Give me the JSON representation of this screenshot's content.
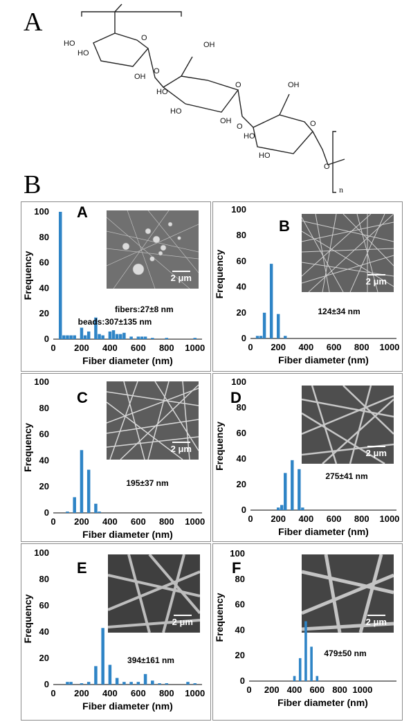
{
  "figure": {
    "label_a": "A",
    "label_b": "B"
  },
  "structure": {
    "labels": [
      "HO",
      "HO",
      "OH",
      "O",
      "O",
      "OH",
      "HO",
      "HO",
      "OH",
      "O",
      "O",
      "OH",
      "HO",
      "HO",
      "O",
      "O"
    ],
    "subscript": "n"
  },
  "colors": {
    "bar": "#2e84c6",
    "axis": "#000000",
    "sem_bg": "#6a6a6a",
    "sem_fiber": "#d6d6d6"
  },
  "chart_data": [
    {
      "type": "bar",
      "panel_label": "A",
      "xlabel": "Fiber diameter (nm)",
      "ylabel": "Frequency",
      "xlim": [
        0,
        1050
      ],
      "ylim": [
        0,
        100
      ],
      "xticks": [
        0,
        200,
        400,
        600,
        800,
        1000
      ],
      "yticks": [
        0,
        20,
        40,
        60,
        80,
        100
      ],
      "x": [
        50,
        75,
        100,
        125,
        150,
        200,
        225,
        250,
        300,
        325,
        350,
        400,
        425,
        450,
        475,
        500,
        550,
        600,
        625,
        650,
        700,
        800,
        1000
      ],
      "values": [
        100,
        3,
        3,
        3,
        3,
        9,
        3,
        6,
        17,
        4,
        3,
        6,
        7,
        4,
        4,
        5,
        2,
        2,
        2,
        2,
        1,
        1,
        1
      ],
      "annotations": [
        "fibers:27±8 nm",
        "beads:307±135 nm"
      ],
      "scale_bar": "2 μm"
    },
    {
      "type": "bar",
      "panel_label": "B",
      "xlabel": "Fiber diameter (nm)",
      "ylabel": "Frequency",
      "xlim": [
        0,
        1050
      ],
      "ylim": [
        0,
        100
      ],
      "xticks": [
        0,
        200,
        400,
        600,
        800,
        1000
      ],
      "yticks": [
        0,
        20,
        40,
        60,
        80,
        100
      ],
      "x": [
        50,
        75,
        100,
        150,
        200,
        250
      ],
      "values": [
        2,
        2,
        20,
        58,
        19,
        2
      ],
      "annotations": [
        "124±34 nm"
      ],
      "scale_bar": "2 μm"
    },
    {
      "type": "bar",
      "panel_label": "C",
      "xlabel": "Fiber diameter (nm)",
      "ylabel": "Frequency",
      "xlim": [
        0,
        1050
      ],
      "ylim": [
        0,
        100
      ],
      "xticks": [
        0,
        200,
        400,
        600,
        800,
        1000
      ],
      "yticks": [
        0,
        20,
        40,
        60,
        80,
        100
      ],
      "x": [
        100,
        150,
        200,
        250,
        300,
        325
      ],
      "values": [
        1,
        12,
        48,
        33,
        7,
        1
      ],
      "annotations": [
        "195±37 nm"
      ],
      "scale_bar": "2 μm"
    },
    {
      "type": "bar",
      "panel_label": "D",
      "xlabel": "Fiber diameter (nm)",
      "ylabel": "Frequency",
      "xlim": [
        0,
        1050
      ],
      "ylim": [
        0,
        100
      ],
      "xticks": [
        0,
        200,
        400,
        600,
        800,
        1000
      ],
      "yticks": [
        0,
        20,
        40,
        60,
        80,
        100
      ],
      "x": [
        200,
        225,
        250,
        300,
        350,
        375
      ],
      "values": [
        2,
        4,
        29,
        39,
        32,
        2
      ],
      "annotations": [
        "275±41 nm"
      ],
      "scale_bar": "2 μm"
    },
    {
      "type": "bar",
      "panel_label": "E",
      "xlabel": "Fiber diameter (nm)",
      "ylabel": "Frequency",
      "xlim": [
        0,
        1050
      ],
      "ylim": [
        0,
        100
      ],
      "xticks": [
        0,
        200,
        400,
        600,
        800,
        1000
      ],
      "yticks": [
        0,
        20,
        40,
        60,
        80,
        100
      ],
      "x": [
        100,
        125,
        200,
        250,
        300,
        350,
        400,
        450,
        500,
        550,
        600,
        650,
        700,
        750,
        800,
        950,
        1000
      ],
      "values": [
        2,
        2,
        1,
        2,
        14,
        43,
        15,
        5,
        2,
        2,
        2,
        8,
        3,
        1,
        1,
        2,
        1
      ],
      "annotations": [
        "394±161 nm"
      ],
      "scale_bar": "2 μm"
    },
    {
      "type": "bar",
      "panel_label": "F",
      "xlabel": "Fiber diameter (nm)",
      "ylabel": "Frequency",
      "xlim": [
        0,
        1300
      ],
      "ylim": [
        0,
        100
      ],
      "xticks": [
        0,
        200,
        400,
        600,
        800,
        1000
      ],
      "yticks": [
        0,
        20,
        40,
        60,
        80,
        100
      ],
      "x": [
        400,
        450,
        500,
        550,
        600
      ],
      "values": [
        4,
        18,
        47,
        27,
        4
      ],
      "annotations": [
        "479±50 nm"
      ],
      "scale_bar": "2 μm"
    }
  ]
}
